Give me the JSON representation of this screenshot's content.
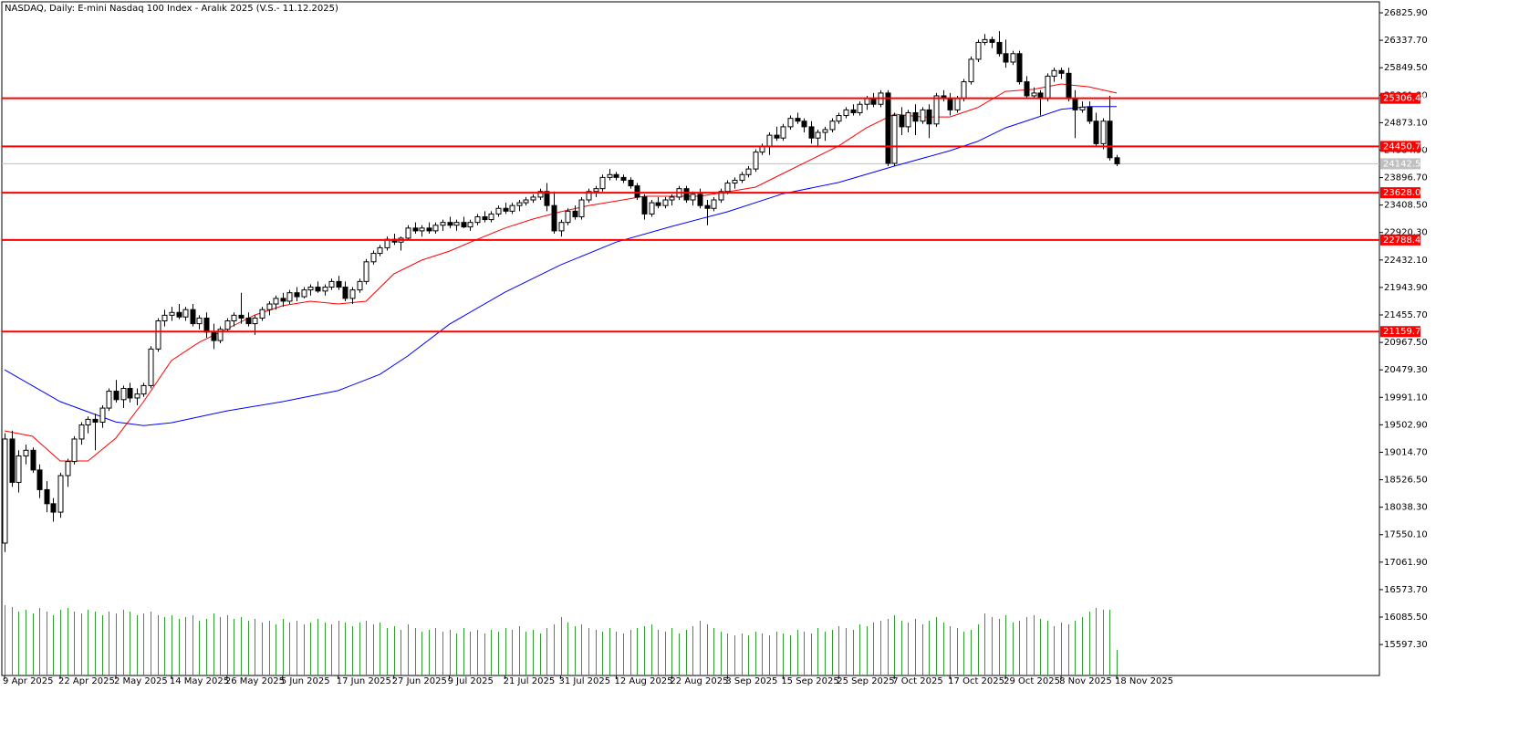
{
  "chart_data": {
    "type": "candlestick",
    "title": "NASDAQ, Daily:  E-mini Nasdaq 100 Index - Aralık 2025 (V.S.- 11.12.2025)",
    "xlim": [
      -0.4,
      197.8
    ],
    "ylim": [
      15047,
      27021
    ],
    "xticks": [
      {
        "value": 0,
        "label": "9 Apr 2025"
      },
      {
        "value": 8,
        "label": "22 Apr 2025"
      },
      {
        "value": 16,
        "label": "2 May 2025"
      },
      {
        "value": 24,
        "label": "14 May 2025"
      },
      {
        "value": 32,
        "label": "26 May 2025"
      },
      {
        "value": 40,
        "label": "5 Jun 2025"
      },
      {
        "value": 48,
        "label": "17 Jun 2025"
      },
      {
        "value": 56,
        "label": "27 Jun 2025"
      },
      {
        "value": 64,
        "label": "9 Jul 2025"
      },
      {
        "value": 72,
        "label": "21 Jul 2025"
      },
      {
        "value": 80,
        "label": "31 Jul 2025"
      },
      {
        "value": 88,
        "label": "12 Aug 2025"
      },
      {
        "value": 96,
        "label": "22 Aug 2025"
      },
      {
        "value": 104,
        "label": "3 Sep 2025"
      },
      {
        "value": 112,
        "label": "15 Sep 2025"
      },
      {
        "value": 120,
        "label": "25 Sep 2025"
      },
      {
        "value": 128,
        "label": "7 Oct 2025"
      },
      {
        "value": 136,
        "label": "17 Oct 2025"
      },
      {
        "value": 144,
        "label": "29 Oct 2025"
      },
      {
        "value": 152,
        "label": "8 Nov 2025"
      },
      {
        "value": 160,
        "label": "18 Nov 2025"
      }
    ],
    "yticks": [
      {
        "value": 26825.9,
        "label": "26825.90"
      },
      {
        "value": 26337.7,
        "label": "26337.70"
      },
      {
        "value": 25849.5,
        "label": "25849.50"
      },
      {
        "value": 25361.3,
        "label": "25361.30"
      },
      {
        "value": 24873.1,
        "label": "24873.10"
      },
      {
        "value": 24384.9,
        "label": "24384.90"
      },
      {
        "value": 23896.7,
        "label": "23896.70"
      },
      {
        "value": 23408.5,
        "label": "23408.50"
      },
      {
        "value": 22920.3,
        "label": "22920.30"
      },
      {
        "value": 22432.1,
        "label": "22432.10"
      },
      {
        "value": 21943.9,
        "label": "21943.90"
      },
      {
        "value": 21455.7,
        "label": "21455.70"
      },
      {
        "value": 20967.5,
        "label": "20967.50"
      },
      {
        "value": 20479.3,
        "label": "20479.30"
      },
      {
        "value": 19991.1,
        "label": "19991.10"
      },
      {
        "value": 19502.9,
        "label": "19502.90"
      },
      {
        "value": 19014.7,
        "label": "19014.70"
      },
      {
        "value": 18526.5,
        "label": "18526.50"
      },
      {
        "value": 18038.3,
        "label": "18038.30"
      },
      {
        "value": 17550.1,
        "label": "17550.10"
      },
      {
        "value": 17061.9,
        "label": "17061.90"
      },
      {
        "value": 16573.7,
        "label": "16573.70"
      },
      {
        "value": 16085.5,
        "label": "16085.50"
      },
      {
        "value": 15597.3,
        "label": "15597.30"
      }
    ],
    "levels": [
      25306.45,
      24450.79,
      23628.04,
      22788.49,
      21159.78
    ],
    "level_color": "#ff0000",
    "current_price": {
      "value": 24142.5,
      "label": "24142.50"
    },
    "bull_color": "#ffffff",
    "bear_color": "#000000",
    "volume_color": "#2f9e2f",
    "open": [
      17400,
      19250,
      18480,
      18950,
      19050,
      18700,
      18350,
      18100,
      17950,
      18600,
      18850,
      19250,
      19500,
      19600,
      19550,
      19800,
      20100,
      19950,
      20150,
      19980,
      20050,
      20200,
      20850,
      21350,
      21450,
      21500,
      21420,
      21550,
      21300,
      21400,
      21150,
      21000,
      21200,
      21350,
      21450,
      21400,
      21300,
      21400,
      21550,
      21650,
      21750,
      21700,
      21850,
      21780,
      21900,
      21950,
      21880,
      21950,
      22050,
      21950,
      21750,
      21900,
      22050,
      22400,
      22550,
      22650,
      22800,
      22750,
      22820,
      23000,
      22950,
      23000,
      22950,
      23050,
      23100,
      23050,
      23100,
      23020,
      23100,
      23200,
      23150,
      23250,
      23350,
      23300,
      23400,
      23450,
      23500,
      23550,
      23650,
      23400,
      22950,
      23100,
      23300,
      23200,
      23500,
      23650,
      23700,
      23900,
      23950,
      23900,
      23850,
      23750,
      23550,
      23250,
      23450,
      23400,
      23500,
      23550,
      23700,
      23500,
      23600,
      23400,
      23350,
      23500,
      23650,
      23800,
      23850,
      23950,
      24050,
      24350,
      24450,
      24650,
      24600,
      24800,
      24950,
      24900,
      24800,
      24600,
      24700,
      24750,
      24900,
      25000,
      25100,
      25050,
      25200,
      25300,
      25200,
      25400,
      24150,
      25000,
      24800,
      25050,
      24900,
      25100,
      24850,
      25350,
      25300,
      25100,
      25300,
      25600,
      26000,
      26300,
      26350,
      26300,
      26100,
      25950,
      26100,
      25600,
      25350,
      25400,
      25300,
      25700,
      25800,
      25750,
      25300,
      25100,
      25150,
      24900,
      24500,
      24900,
      24250
    ],
    "high": [
      19350,
      19400,
      19050,
      19150,
      19100,
      18800,
      18500,
      18200,
      18650,
      18900,
      19300,
      19550,
      19650,
      19700,
      19850,
      20150,
      20300,
      20200,
      20250,
      20150,
      20250,
      20900,
      21400,
      21550,
      21600,
      21650,
      21600,
      21650,
      21450,
      21500,
      21300,
      21250,
      21400,
      21500,
      21850,
      21500,
      21450,
      21600,
      21700,
      21800,
      21850,
      21900,
      21950,
      21950,
      22000,
      22050,
      22000,
      22100,
      22150,
      22050,
      21950,
      22100,
      22450,
      22600,
      22700,
      22850,
      22900,
      22850,
      23050,
      23100,
      23050,
      23100,
      23100,
      23150,
      23200,
      23150,
      23200,
      23150,
      23250,
      23300,
      23300,
      23400,
      23450,
      23450,
      23500,
      23550,
      23600,
      23700,
      23800,
      23650,
      23150,
      23350,
      23400,
      23550,
      23700,
      23750,
      23950,
      24050,
      24000,
      23950,
      23900,
      23800,
      23600,
      23500,
      23550,
      23550,
      23600,
      23750,
      23750,
      23650,
      23700,
      23500,
      23550,
      23700,
      23850,
      23900,
      24000,
      24100,
      24400,
      24500,
      24700,
      24800,
      24850,
      25000,
      25050,
      24950,
      24900,
      24750,
      24800,
      24950,
      25050,
      25150,
      25200,
      25250,
      25350,
      25400,
      25450,
      25450,
      25050,
      25150,
      25100,
      25200,
      25150,
      25200,
      25400,
      25450,
      25400,
      25350,
      25650,
      26050,
      26350,
      26450,
      26400,
      26500,
      26350,
      26150,
      26150,
      25700,
      25500,
      25450,
      25750,
      25850,
      25850,
      25850,
      25450,
      25250,
      25250,
      25050,
      24950,
      25350,
      24300
    ],
    "low": [
      17240,
      18400,
      18300,
      18800,
      18650,
      18200,
      17950,
      17780,
      17850,
      18400,
      18800,
      19150,
      19350,
      19050,
      19450,
      19750,
      19900,
      19800,
      19900,
      19850,
      20000,
      20150,
      20800,
      21250,
      21350,
      21380,
      21350,
      21250,
      21200,
      21050,
      20850,
      20950,
      21150,
      21250,
      21300,
      21250,
      21100,
      21350,
      21450,
      21550,
      21600,
      21650,
      21700,
      21750,
      21800,
      21850,
      21800,
      21900,
      21900,
      21700,
      21650,
      21850,
      22000,
      22350,
      22500,
      22600,
      22700,
      22600,
      22780,
      22900,
      22850,
      22900,
      22900,
      22950,
      23000,
      22950,
      23000,
      22950,
      23050,
      23100,
      23100,
      23200,
      23250,
      23250,
      23300,
      23400,
      23450,
      23500,
      23300,
      22900,
      22850,
      23050,
      23150,
      23150,
      23450,
      23550,
      23650,
      23850,
      23850,
      23800,
      23700,
      23500,
      23150,
      23200,
      23350,
      23350,
      23400,
      23500,
      23450,
      23400,
      23350,
      23050,
      23300,
      23450,
      23600,
      23700,
      23800,
      23900,
      24000,
      24300,
      24300,
      24550,
      24550,
      24750,
      24850,
      24700,
      24500,
      24450,
      24550,
      24700,
      24850,
      24950,
      25000,
      25000,
      25100,
      25150,
      25150,
      24100,
      24100,
      24650,
      24700,
      24650,
      24850,
      24600,
      24800,
      25250,
      25000,
      25050,
      25250,
      25550,
      25950,
      26250,
      26200,
      26050,
      25850,
      25900,
      25550,
      25300,
      25300,
      25000,
      25250,
      25600,
      25650,
      25250,
      24600,
      25050,
      24850,
      24450,
      24400,
      24200,
      24100
    ],
    "close": [
      19250,
      18480,
      18950,
      19050,
      18700,
      18350,
      18100,
      17950,
      18600,
      18850,
      19250,
      19500,
      19600,
      19550,
      19800,
      20100,
      19950,
      20150,
      19980,
      20050,
      20200,
      20850,
      21350,
      21450,
      21500,
      21420,
      21550,
      21300,
      21400,
      21150,
      21000,
      21200,
      21350,
      21450,
      21400,
      21300,
      21400,
      21550,
      21650,
      21750,
      21700,
      21850,
      21780,
      21900,
      21950,
      21880,
      21950,
      22050,
      21950,
      21750,
      21900,
      22050,
      22400,
      22550,
      22650,
      22800,
      22750,
      22820,
      23000,
      22950,
      23000,
      22950,
      23050,
      23100,
      23050,
      23100,
      23020,
      23100,
      23200,
      23150,
      23250,
      23350,
      23300,
      23400,
      23450,
      23500,
      23550,
      23650,
      23400,
      22950,
      23100,
      23300,
      23200,
      23500,
      23650,
      23700,
      23900,
      23950,
      23900,
      23850,
      23750,
      23550,
      23250,
      23450,
      23400,
      23500,
      23550,
      23700,
      23500,
      23600,
      23400,
      23350,
      23500,
      23650,
      23800,
      23850,
      23950,
      24050,
      24350,
      24450,
      24650,
      24600,
      24800,
      24950,
      24900,
      24800,
      24600,
      24700,
      24750,
      24900,
      25000,
      25100,
      25050,
      25200,
      25300,
      25200,
      25400,
      24150,
      25000,
      24800,
      25050,
      24900,
      25100,
      24850,
      25350,
      25300,
      25100,
      25300,
      25600,
      26000,
      26300,
      26350,
      26300,
      26100,
      25950,
      26100,
      25600,
      25350,
      25400,
      25300,
      25700,
      25800,
      25750,
      25300,
      25100,
      25150,
      24900,
      24500,
      24900,
      24250,
      24142.5
    ],
    "volume": [
      77,
      75,
      70,
      72,
      68,
      74,
      70,
      66,
      72,
      74,
      70,
      68,
      72,
      70,
      66,
      70,
      68,
      72,
      70,
      66,
      68,
      70,
      66,
      64,
      66,
      62,
      64,
      66,
      60,
      62,
      68,
      64,
      66,
      62,
      64,
      60,
      62,
      58,
      60,
      56,
      62,
      58,
      60,
      56,
      58,
      62,
      58,
      56,
      60,
      58,
      54,
      58,
      60,
      56,
      58,
      52,
      54,
      50,
      56,
      52,
      48,
      50,
      52,
      48,
      50,
      46,
      52,
      48,
      50,
      46,
      50,
      48,
      52,
      50,
      54,
      48,
      50,
      46,
      52,
      56,
      64,
      58,
      54,
      56,
      52,
      50,
      48,
      52,
      48,
      46,
      50,
      52,
      54,
      56,
      50,
      48,
      52,
      46,
      50,
      54,
      60,
      56,
      52,
      48,
      46,
      44,
      46,
      44,
      48,
      46,
      44,
      48,
      46,
      44,
      50,
      48,
      46,
      52,
      48,
      50,
      54,
      52,
      50,
      56,
      54,
      58,
      60,
      62,
      66,
      60,
      58,
      62,
      56,
      60,
      64,
      58,
      54,
      52,
      48,
      50,
      56,
      68,
      64,
      62,
      66,
      58,
      60,
      64,
      66,
      62,
      60,
      54,
      58,
      56,
      60,
      64,
      70,
      74,
      72,
      72,
      28
    ],
    "moving_averages": [
      {
        "color": "#ff0000",
        "x": [
          0,
          4,
          8,
          12,
          16,
          20,
          24,
          28,
          32,
          36,
          40,
          44,
          48,
          52,
          56,
          60,
          64,
          68,
          72,
          76,
          80,
          84,
          88,
          92,
          96,
          100,
          104,
          108,
          112,
          116,
          120,
          124,
          128,
          132,
          136,
          140,
          144,
          148,
          152,
          156,
          160
        ],
        "values": [
          19395,
          19300,
          18860,
          18860,
          19265,
          19915,
          20645,
          20970,
          21210,
          21455,
          21620,
          21700,
          21650,
          21700,
          22185,
          22430,
          22590,
          22800,
          23000,
          23160,
          23290,
          23400,
          23480,
          23565,
          23565,
          23565,
          23645,
          23725,
          23970,
          24215,
          24460,
          24780,
          25025,
          24975,
          24975,
          25140,
          25430,
          25465,
          25560,
          25510,
          25400
        ]
      },
      {
        "color": "#0000ff",
        "x": [
          0,
          8,
          16,
          20,
          24,
          32,
          40,
          48,
          54,
          58,
          64,
          72,
          80,
          88,
          96,
          104,
          112,
          120,
          128,
          136,
          140,
          144,
          148,
          152,
          156,
          160
        ],
        "values": [
          20480,
          19915,
          19555,
          19490,
          19540,
          19750,
          19915,
          20110,
          20400,
          20725,
          21290,
          21860,
          22345,
          22750,
          23030,
          23290,
          23610,
          23810,
          24100,
          24375,
          24540,
          24780,
          24945,
          25110,
          25160,
          25160
        ]
      }
    ]
  }
}
